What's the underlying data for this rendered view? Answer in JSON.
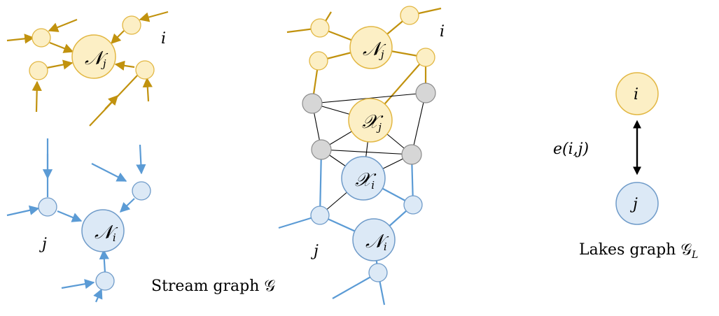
{
  "colors": {
    "gold": "#C1920E",
    "gold_fill": "#FCEFC5",
    "gold_stroke": "#E2B743",
    "blue": "#5B9BD5",
    "blue_fill": "#DCE9F6",
    "blue_stroke": "#6F9BC9",
    "gray_fill": "#D6D6D6",
    "gray_stroke": "#8C8C8C",
    "black": "#000000"
  },
  "labels": {
    "stream_caption": "Stream graph 𝒢",
    "lakes_caption": "Lakes graph 𝒢",
    "lakes_caption_sub": "L",
    "edge_label": "e(i,j)",
    "left_top_i": "i",
    "left_bottom_j": "j",
    "mid_top_i": "i",
    "mid_bottom_j": "j",
    "left_top_node": "𝒩",
    "left_top_node_sub": "j",
    "left_bottom_node": "𝒩",
    "left_bottom_node_sub": "i",
    "mid_N_j": "𝒩",
    "mid_N_j_sub": "j",
    "mid_X_j": "𝒳",
    "mid_X_j_sub": "j",
    "mid_X_i": "𝒳",
    "mid_X_i_sub": "i",
    "mid_N_i": "𝒩",
    "mid_N_i_sub": "i",
    "lake_i": "i",
    "lake_j": "j"
  }
}
